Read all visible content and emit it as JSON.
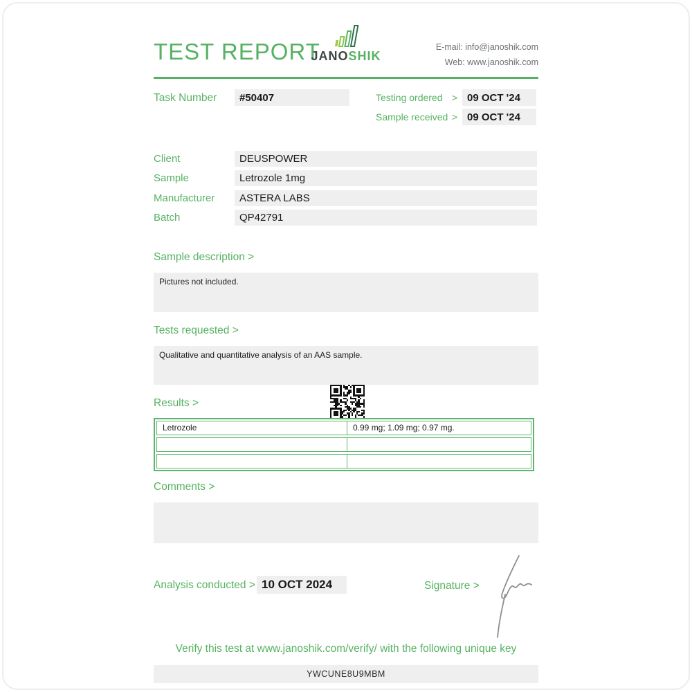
{
  "header": {
    "title": "TEST REPORT",
    "logo": {
      "brand_left": "JANO",
      "brand_right": "SHIK",
      "icon": "bar-chart-growth-icon"
    },
    "contact": {
      "email_label": "E-mail:",
      "email": "info@janoshik.com",
      "web_label": "Web:",
      "web": "www.janoshik.com"
    }
  },
  "task": {
    "label": "Task Number",
    "value": "#50407"
  },
  "dates": [
    {
      "label": "Testing ordered",
      "arrow": ">",
      "value": "09 OCT '24"
    },
    {
      "label": "Sample received",
      "arrow": ">",
      "value": "09 OCT '24"
    }
  ],
  "info_rows": [
    {
      "label": "Client",
      "value": "DEUSPOWER"
    },
    {
      "label": "Sample",
      "value": "Letrozole 1mg"
    },
    {
      "label": "Manufacturer",
      "value": "ASTERA LABS"
    },
    {
      "label": "Batch",
      "value": "QP42791"
    }
  ],
  "sections": {
    "sample_description": {
      "label": "Sample description >",
      "content": "Pictures not included."
    },
    "tests_requested": {
      "label": "Tests requested >",
      "content": "Qualitative and quantitative analysis of an AAS sample."
    },
    "results": {
      "label": "Results >",
      "qr": "qr-code",
      "table": {
        "rows": [
          {
            "analyte": "Letrozole",
            "result": "0.99 mg; 1.09 mg; 0.97 mg."
          },
          {
            "analyte": "",
            "result": ""
          },
          {
            "analyte": "",
            "result": ""
          }
        ]
      }
    },
    "comments": {
      "label": "Comments >",
      "content": ""
    }
  },
  "footer": {
    "analysis": {
      "label": "Analysis conducted >",
      "value": "10 OCT 2024"
    },
    "signature_label": "Signature >",
    "verify_text": "Verify this test at www.janoshik.com/verify/ with the following unique key",
    "verify_key": "YWCUNE8U9MBM"
  },
  "colors": {
    "accent_green": "#56b262",
    "table_border_green": "#5cb56a",
    "field_background": "#efefef",
    "dark_text": "#1d1d1b",
    "gray_text": "#6d7174",
    "signature_gray": "#8d8d8d"
  }
}
